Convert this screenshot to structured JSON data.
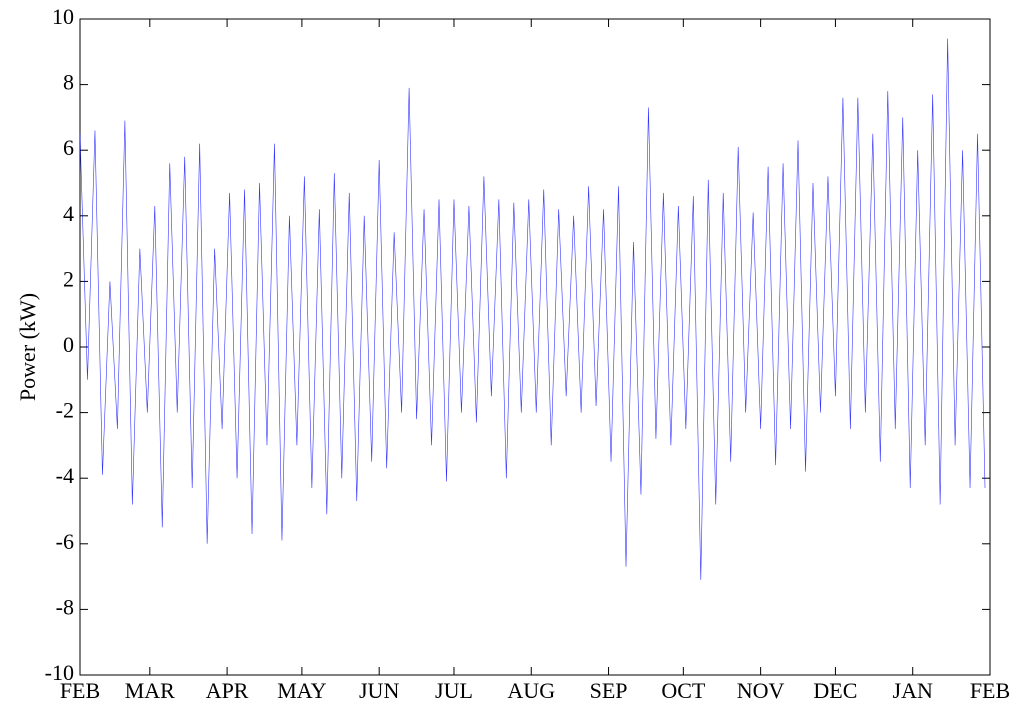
{
  "chart_data": {
    "type": "line",
    "ylabel": "Power (kW)",
    "color": "#0000ff",
    "xlim": [
      0,
      365
    ],
    "ylim": [
      -10,
      10
    ],
    "yticks": [
      -10,
      -8,
      -6,
      -4,
      -2,
      0,
      2,
      4,
      6,
      8,
      10
    ],
    "xticks": [
      {
        "value": 0,
        "label": "FEB"
      },
      {
        "value": 28,
        "label": "MAR"
      },
      {
        "value": 59,
        "label": "APR"
      },
      {
        "value": 89,
        "label": "MAY"
      },
      {
        "value": 120,
        "label": "JUN"
      },
      {
        "value": 150,
        "label": "JUL"
      },
      {
        "value": 181,
        "label": "AUG"
      },
      {
        "value": 212,
        "label": "SEP"
      },
      {
        "value": 242,
        "label": "OCT"
      },
      {
        "value": 273,
        "label": "NOV"
      },
      {
        "value": 303,
        "label": "DEC"
      },
      {
        "value": 334,
        "label": "JAN"
      },
      {
        "value": 365,
        "label": "FEB"
      }
    ],
    "x": [
      0,
      3,
      6,
      9,
      12,
      15,
      18,
      21,
      24,
      27,
      30,
      33,
      36,
      39,
      42,
      45,
      48,
      51,
      54,
      57,
      60,
      63,
      66,
      69,
      72,
      75,
      78,
      81,
      84,
      87,
      90,
      93,
      96,
      99,
      102,
      105,
      108,
      111,
      114,
      117,
      120,
      123,
      126,
      129,
      132,
      135,
      138,
      141,
      144,
      147,
      150,
      153,
      156,
      159,
      162,
      165,
      168,
      171,
      174,
      177,
      180,
      183,
      186,
      189,
      192,
      195,
      198,
      201,
      204,
      207,
      210,
      213,
      216,
      219,
      222,
      225,
      228,
      231,
      234,
      237,
      240,
      243,
      246,
      249,
      252,
      255,
      258,
      261,
      264,
      267,
      270,
      273,
      276,
      279,
      282,
      285,
      288,
      291,
      294,
      297,
      300,
      303,
      306,
      309,
      312,
      315,
      318,
      321,
      324,
      327,
      330,
      333,
      336,
      339,
      342,
      345,
      348,
      351,
      354,
      357,
      360,
      363
    ],
    "values": [
      6.5,
      -1,
      6.6,
      -3.9,
      2,
      -2.5,
      6.9,
      -4.8,
      3,
      -2,
      4.3,
      -5.5,
      5.6,
      -2,
      5.8,
      -4.3,
      6.2,
      -6,
      3,
      -2.5,
      4.7,
      -4,
      4.8,
      -5.7,
      5,
      -3,
      6.2,
      -5.9,
      4,
      -3,
      5.2,
      -4.3,
      4.2,
      -5.1,
      5.3,
      -4,
      4.7,
      -4.7,
      4,
      -3.5,
      5.7,
      -3.7,
      3.5,
      -2,
      7.9,
      -2.2,
      4.2,
      -3,
      4.5,
      -4.1,
      4.5,
      -2,
      4.3,
      -2.3,
      5.2,
      -1.5,
      4.5,
      -4,
      4.4,
      -2,
      4.5,
      -2,
      4.8,
      -3,
      4.2,
      -1.5,
      4,
      -2,
      4.9,
      -1.8,
      4.2,
      -3.5,
      4.9,
      -6.7,
      3.2,
      -4.5,
      7.3,
      -2.8,
      4.7,
      -3,
      4.3,
      -2.5,
      4.6,
      -7.1,
      5.1,
      -4.8,
      4.7,
      -3.5,
      6.1,
      -2,
      4.1,
      -2.5,
      5.5,
      -3.6,
      5.6,
      -2.5,
      6.3,
      -3.8,
      5,
      -2,
      5.2,
      -1.5,
      7.6,
      -2.5,
      7.6,
      -2,
      6.5,
      -3.5,
      7.8,
      -2.5,
      7,
      -4.3,
      6,
      -3,
      7.7,
      -4.8,
      9.4,
      -3,
      6,
      -4.3,
      6.5,
      -4.3
    ],
    "grid": false
  }
}
